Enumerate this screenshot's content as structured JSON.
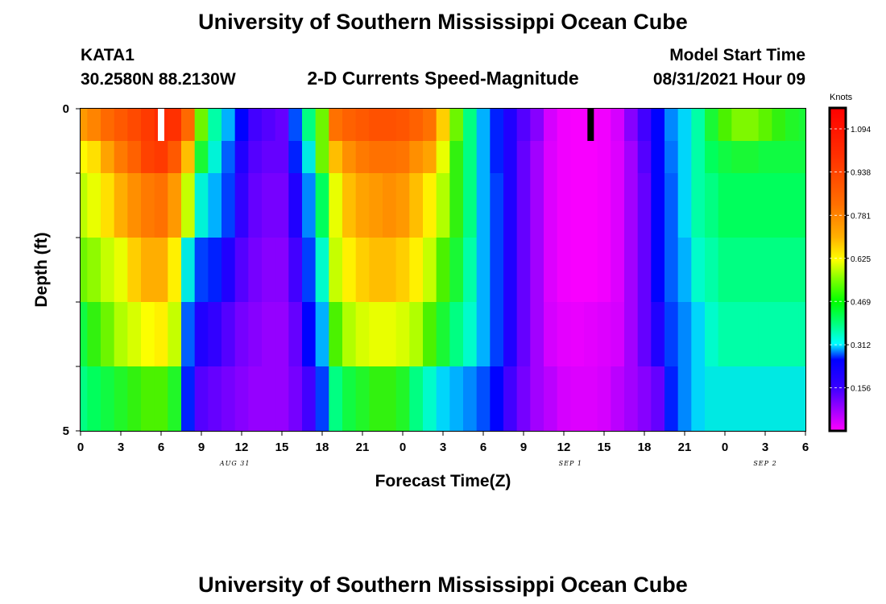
{
  "header": {
    "title": "University of Southern Mississippi Ocean Cube",
    "station": "KATA1",
    "coords": "30.2580N  88.2130W",
    "subtitle": "2-D Currents Speed-Magnitude",
    "model_start_label": "Model Start Time",
    "model_start_value": "08/31/2021 Hour 09",
    "footer_title": "University of Southern Mississippi Ocean Cube"
  },
  "chart_data": {
    "type": "heatmap",
    "title": "2-D Currents Speed-Magnitude",
    "xlabel": "Forecast Time(Z)",
    "ylabel": "Depth (ft)",
    "x_tick_labels": [
      "0",
      "3",
      "6",
      "9",
      "12",
      "15",
      "18",
      "21",
      "0",
      "3",
      "6",
      "9",
      "12",
      "15",
      "18",
      "21",
      "0",
      "3",
      "6"
    ],
    "date_labels": [
      {
        "label": "AUG 31",
        "hour": 11.5
      },
      {
        "label": "SEP 1",
        "hour": 36.5
      },
      {
        "label": "SEP 2",
        "hour": 51.0
      }
    ],
    "y_tick_labels": [
      "0",
      "5"
    ],
    "ylim": [
      0,
      5
    ],
    "xlim_hours": [
      0,
      54
    ],
    "hour_step": 1,
    "depth_bands": 5,
    "surface_band_top_fraction": 0.5,
    "markers": [
      {
        "hour": 6,
        "color": "#ffffff",
        "label": "model start"
      },
      {
        "hour": 38,
        "color": "#000000",
        "label": "current time"
      }
    ],
    "colorbar": {
      "unit": "Knots",
      "min": 0.0,
      "max": 1.17,
      "tick_values": [
        1.094,
        0.938,
        0.781,
        0.625,
        0.469,
        0.312,
        0.156
      ],
      "tick_labels": [
        "1.094",
        "0.938",
        "0.781",
        "0.625",
        "0.469",
        "0.312",
        "0.156"
      ]
    },
    "values_knots": [
      [
        0.78,
        0.82,
        0.88,
        0.92,
        0.96,
        1.0,
        1.04,
        1.03,
        0.88,
        0.52,
        0.38,
        0.3,
        0.2,
        0.16,
        0.15,
        0.14,
        0.25,
        0.4,
        0.52,
        0.86,
        0.9,
        0.92,
        0.94,
        0.94,
        0.93,
        0.9,
        0.86,
        0.7,
        0.52,
        0.4,
        0.3,
        0.22,
        0.18,
        0.15,
        0.12,
        0.06,
        0.02,
        0.01,
        0.01,
        0.02,
        0.06,
        0.12,
        0.16,
        0.2,
        0.28,
        0.32,
        0.38,
        0.45,
        0.5,
        0.53,
        0.53,
        0.51,
        0.48,
        0.46,
        0.45
      ],
      [
        0.65,
        0.68,
        0.76,
        0.84,
        0.9,
        0.98,
        1.0,
        0.92,
        0.72,
        0.45,
        0.35,
        0.26,
        0.18,
        0.15,
        0.14,
        0.14,
        0.22,
        0.34,
        0.52,
        0.72,
        0.8,
        0.84,
        0.86,
        0.86,
        0.85,
        0.8,
        0.76,
        0.62,
        0.48,
        0.4,
        0.3,
        0.22,
        0.18,
        0.14,
        0.1,
        0.05,
        0.02,
        0.01,
        0.01,
        0.02,
        0.05,
        0.1,
        0.15,
        0.2,
        0.27,
        0.32,
        0.38,
        0.42,
        0.44,
        0.45,
        0.45,
        0.44,
        0.44,
        0.44,
        0.44
      ],
      [
        0.57,
        0.62,
        0.68,
        0.74,
        0.8,
        0.84,
        0.86,
        0.78,
        0.58,
        0.35,
        0.3,
        0.24,
        0.17,
        0.14,
        0.13,
        0.13,
        0.18,
        0.28,
        0.42,
        0.62,
        0.72,
        0.76,
        0.78,
        0.8,
        0.78,
        0.72,
        0.66,
        0.56,
        0.48,
        0.4,
        0.3,
        0.24,
        0.18,
        0.14,
        0.1,
        0.05,
        0.02,
        0.01,
        0.01,
        0.02,
        0.05,
        0.1,
        0.14,
        0.2,
        0.26,
        0.32,
        0.38,
        0.4,
        0.42,
        0.42,
        0.42,
        0.42,
        0.42,
        0.42,
        0.42
      ],
      [
        0.52,
        0.54,
        0.58,
        0.62,
        0.7,
        0.74,
        0.74,
        0.66,
        0.34,
        0.24,
        0.22,
        0.18,
        0.15,
        0.13,
        0.12,
        0.12,
        0.16,
        0.24,
        0.36,
        0.58,
        0.66,
        0.7,
        0.72,
        0.72,
        0.7,
        0.66,
        0.58,
        0.5,
        0.45,
        0.38,
        0.3,
        0.24,
        0.18,
        0.14,
        0.1,
        0.05,
        0.02,
        0.01,
        0.01,
        0.02,
        0.05,
        0.1,
        0.14,
        0.2,
        0.26,
        0.3,
        0.36,
        0.38,
        0.4,
        0.4,
        0.4,
        0.4,
        0.4,
        0.4,
        0.4
      ],
      [
        0.44,
        0.48,
        0.52,
        0.56,
        0.6,
        0.64,
        0.66,
        0.58,
        0.26,
        0.18,
        0.17,
        0.15,
        0.13,
        0.12,
        0.11,
        0.11,
        0.14,
        0.2,
        0.3,
        0.5,
        0.56,
        0.6,
        0.62,
        0.62,
        0.6,
        0.56,
        0.5,
        0.45,
        0.4,
        0.36,
        0.3,
        0.24,
        0.18,
        0.14,
        0.1,
        0.06,
        0.04,
        0.03,
        0.04,
        0.05,
        0.06,
        0.1,
        0.14,
        0.18,
        0.24,
        0.28,
        0.32,
        0.36,
        0.38,
        0.38,
        0.38,
        0.38,
        0.38,
        0.38,
        0.38
      ],
      [
        0.4,
        0.42,
        0.44,
        0.46,
        0.48,
        0.5,
        0.5,
        0.46,
        0.22,
        0.15,
        0.14,
        0.13,
        0.12,
        0.11,
        0.11,
        0.11,
        0.13,
        0.16,
        0.24,
        0.4,
        0.44,
        0.46,
        0.48,
        0.48,
        0.46,
        0.4,
        0.36,
        0.32,
        0.3,
        0.28,
        0.25,
        0.2,
        0.16,
        0.13,
        0.1,
        0.08,
        0.06,
        0.05,
        0.05,
        0.06,
        0.08,
        0.1,
        0.12,
        0.14,
        0.22,
        0.28,
        0.32,
        0.34,
        0.34,
        0.34,
        0.34,
        0.34,
        0.34,
        0.34,
        0.34
      ]
    ]
  }
}
